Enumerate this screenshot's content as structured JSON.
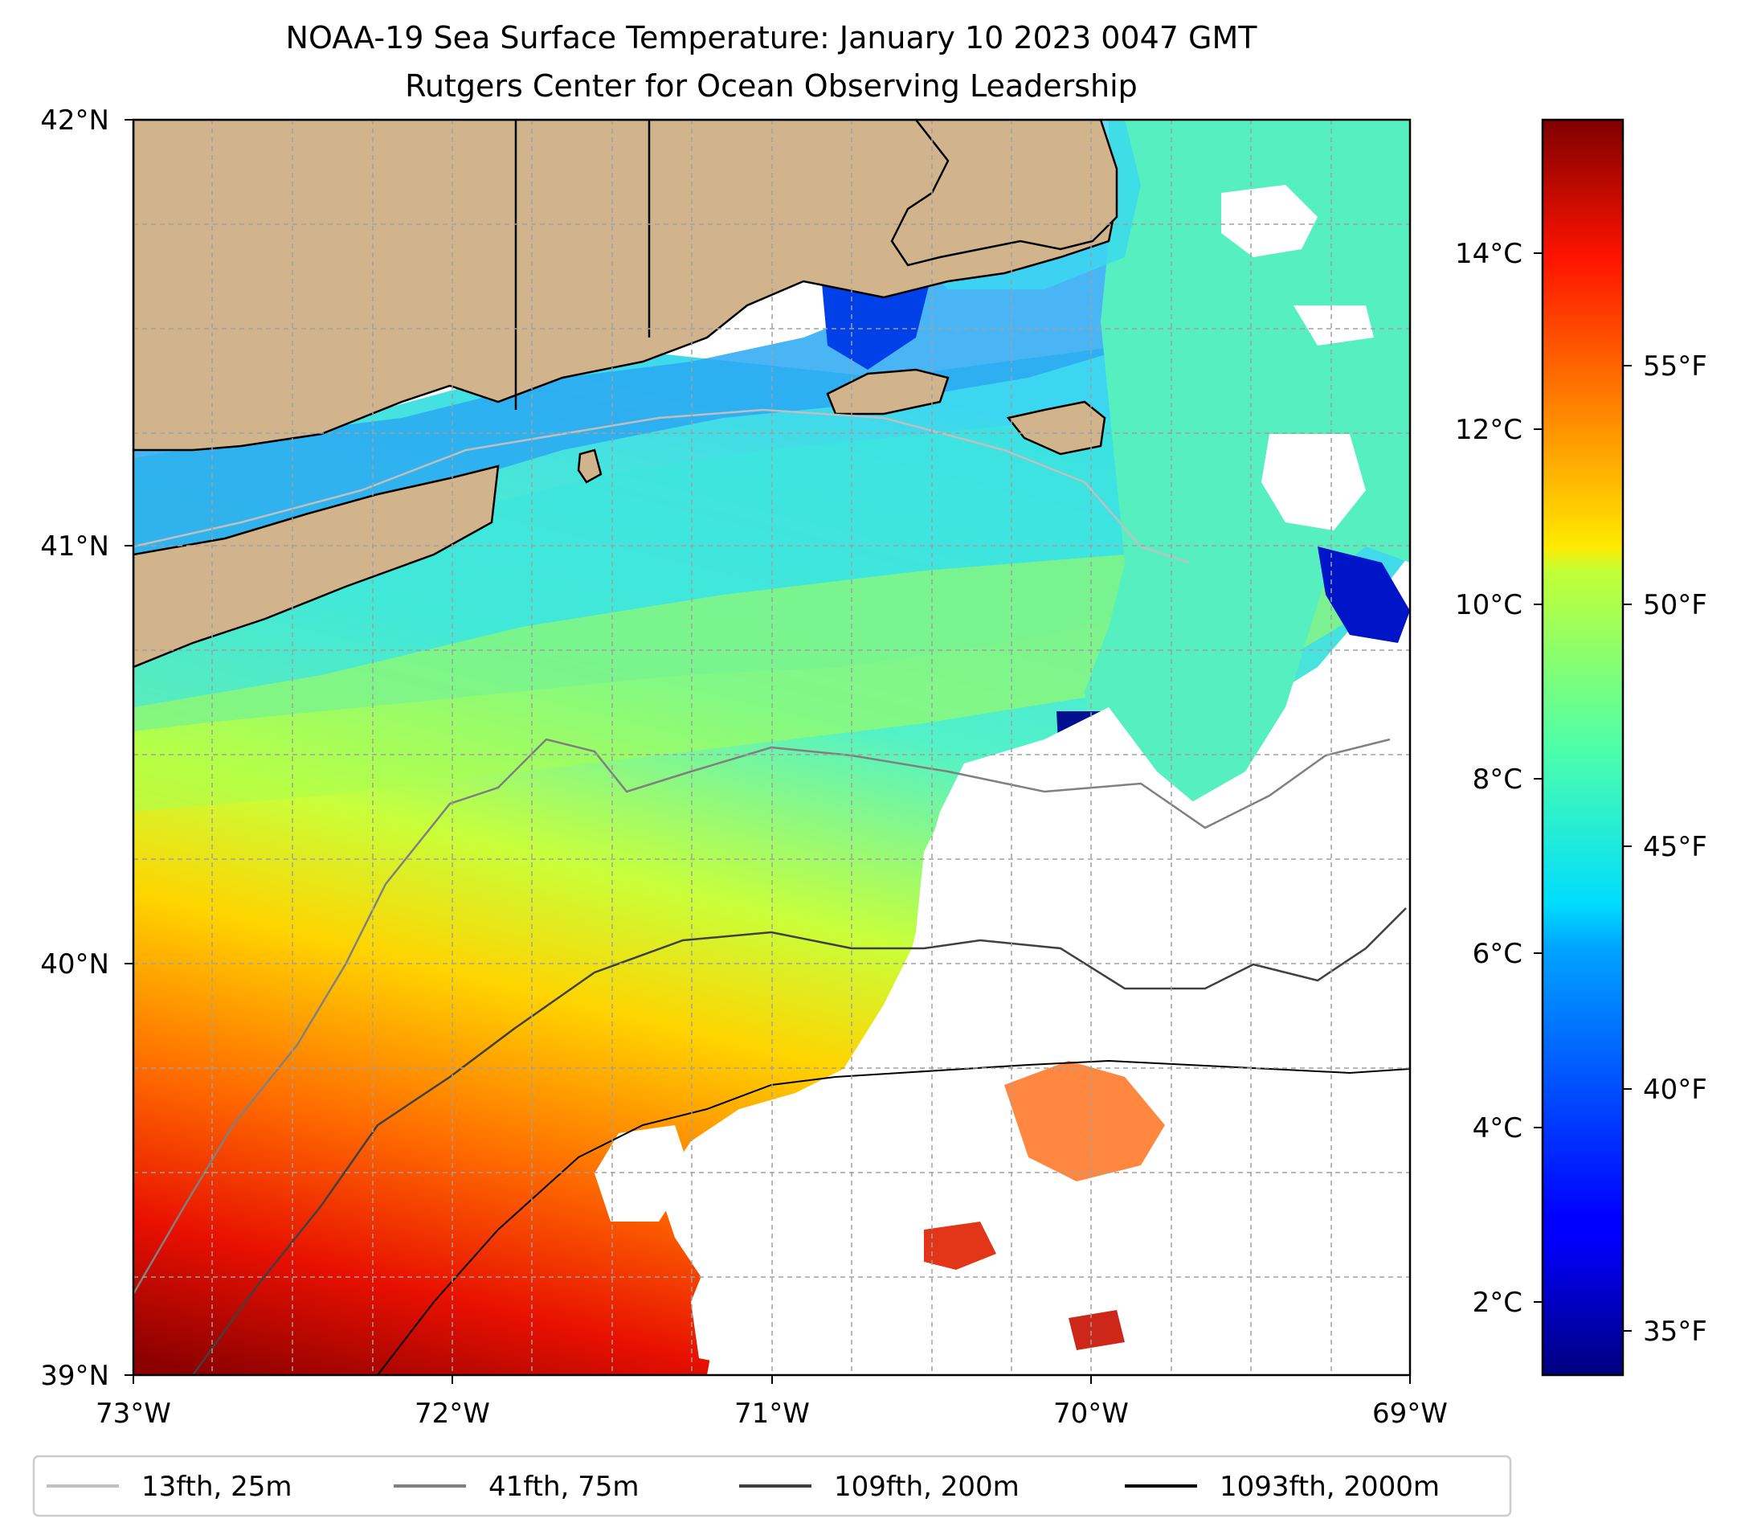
{
  "title": {
    "line1": "NOAA-19 Sea Surface Temperature: January 10 2023 0047 GMT",
    "line2": "Rutgers Center for Ocean Observing Leadership"
  },
  "map": {
    "lon_range": [
      -73,
      -69
    ],
    "lat_range": [
      39,
      42
    ],
    "x_ticks": [
      "73°W",
      "72°W",
      "71°W",
      "70°W",
      "69°W"
    ],
    "y_ticks": [
      "42°N",
      "41°N",
      "40°N",
      "39°N"
    ],
    "gridlines": "dashed gray every 0.25°",
    "colors": {
      "land": "#d2b48c",
      "coast": "#000000",
      "cloud_mask": "#ffffff"
    },
    "places": [
      "Long Island",
      "Block Island",
      "Martha's Vineyard",
      "Nantucket",
      "Cape Cod"
    ]
  },
  "colorbar": {
    "colormap": "jet",
    "celsius_ticks": [
      "14°C",
      "12°C",
      "10°C",
      "8°C",
      "6°C",
      "4°C",
      "2°C"
    ],
    "celsius_values": [
      14,
      12,
      10,
      8,
      6,
      4,
      2
    ],
    "fahrenheit_ticks": [
      "55°F",
      "50°F",
      "45°F",
      "40°F",
      "35°F"
    ],
    "fahrenheit_values": [
      55,
      50,
      45,
      40,
      35
    ],
    "range_c": [
      1.2,
      15.6
    ]
  },
  "legend": {
    "items": [
      {
        "label": "13fth, 25m",
        "color": "#bfbfbf"
      },
      {
        "label": "41fth, 75m",
        "color": "#808080"
      },
      {
        "label": "109fth, 200m",
        "color": "#404040"
      },
      {
        "label": "1093fth, 2000m",
        "color": "#000000"
      }
    ]
  }
}
